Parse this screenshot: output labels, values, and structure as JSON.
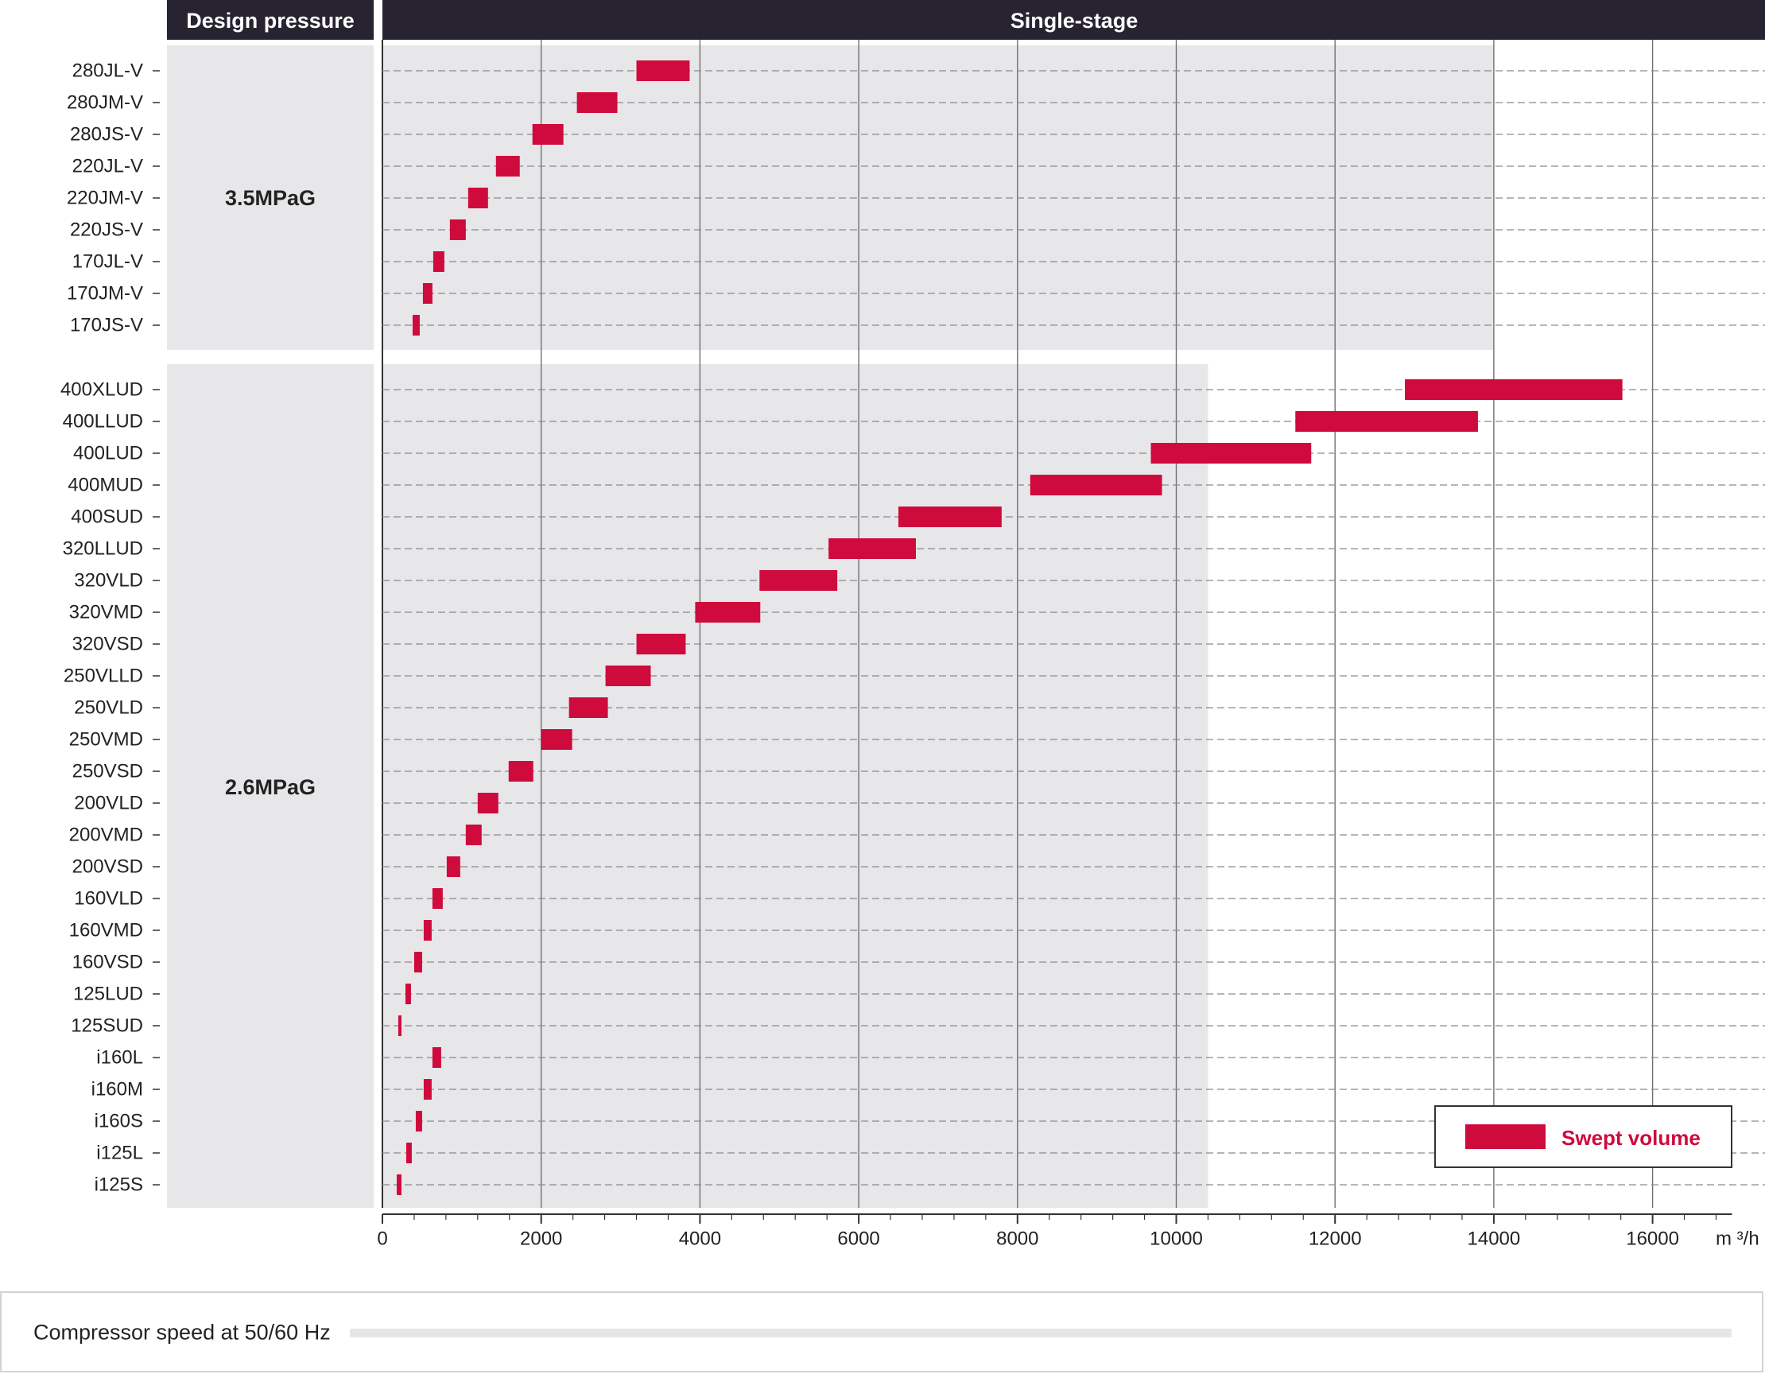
{
  "header": {
    "design_pressure_label": "Design pressure",
    "stage_label": "Single-stage"
  },
  "footer": {
    "label": "Compressor speed at 50/60 Hz"
  },
  "legend": {
    "label": "Swept volume"
  },
  "colors": {
    "header_bg": "#272330",
    "bar": "#cf0a3c",
    "panel": "#e7e7e9",
    "legend_text": "#cf0a3c"
  },
  "chart_data": {
    "type": "bar",
    "orientation": "horizontal-range",
    "title": "",
    "xlabel": "m ³/h",
    "xlim": [
      0,
      17000
    ],
    "xticks": [
      0,
      2000,
      4000,
      6000,
      8000,
      10000,
      12000,
      14000,
      16000
    ],
    "groups": [
      {
        "label": "3.5MPaG",
        "panel_xmax": 14000,
        "models": [
          {
            "name": "280JL-V",
            "min": 3200,
            "max": 3870
          },
          {
            "name": "280JM-V",
            "min": 2450,
            "max": 2960
          },
          {
            "name": "280JS-V",
            "min": 1890,
            "max": 2280
          },
          {
            "name": "220JL-V",
            "min": 1430,
            "max": 1730
          },
          {
            "name": "220JM-V",
            "min": 1080,
            "max": 1330
          },
          {
            "name": "220JS-V",
            "min": 850,
            "max": 1050
          },
          {
            "name": "170JL-V",
            "min": 640,
            "max": 780
          },
          {
            "name": "170JM-V",
            "min": 510,
            "max": 630
          },
          {
            "name": "170JS-V",
            "min": 380,
            "max": 470
          }
        ]
      },
      {
        "label": "2.6MPaG",
        "panel_xmax": 10400,
        "models": [
          {
            "name": "400XLUD",
            "min": 12880,
            "max": 15620
          },
          {
            "name": "400LLUD",
            "min": 11500,
            "max": 13800
          },
          {
            "name": "400LUD",
            "min": 9680,
            "max": 11700
          },
          {
            "name": "400MUD",
            "min": 8160,
            "max": 9820
          },
          {
            "name": "400SUD",
            "min": 6500,
            "max": 7800
          },
          {
            "name": "320LLUD",
            "min": 5620,
            "max": 6720
          },
          {
            "name": "320VLD",
            "min": 4750,
            "max": 5730
          },
          {
            "name": "320VMD",
            "min": 3940,
            "max": 4760
          },
          {
            "name": "320VSD",
            "min": 3200,
            "max": 3820
          },
          {
            "name": "250VLLD",
            "min": 2810,
            "max": 3380
          },
          {
            "name": "250VLD",
            "min": 2350,
            "max": 2840
          },
          {
            "name": "250VMD",
            "min": 2000,
            "max": 2390
          },
          {
            "name": "250VSD",
            "min": 1590,
            "max": 1900
          },
          {
            "name": "200VLD",
            "min": 1200,
            "max": 1460
          },
          {
            "name": "200VMD",
            "min": 1050,
            "max": 1250
          },
          {
            "name": "200VSD",
            "min": 810,
            "max": 980
          },
          {
            "name": "160VLD",
            "min": 630,
            "max": 760
          },
          {
            "name": "160VMD",
            "min": 520,
            "max": 620
          },
          {
            "name": "160VSD",
            "min": 400,
            "max": 500
          },
          {
            "name": "125LUD",
            "min": 290,
            "max": 360
          },
          {
            "name": "125SUD",
            "min": 200,
            "max": 240
          },
          {
            "name": "i160L",
            "min": 630,
            "max": 740
          },
          {
            "name": "i160M",
            "min": 520,
            "max": 620
          },
          {
            "name": "i160S",
            "min": 420,
            "max": 500
          },
          {
            "name": "i125L",
            "min": 300,
            "max": 370
          },
          {
            "name": "i125S",
            "min": 180,
            "max": 240
          }
        ]
      }
    ]
  }
}
